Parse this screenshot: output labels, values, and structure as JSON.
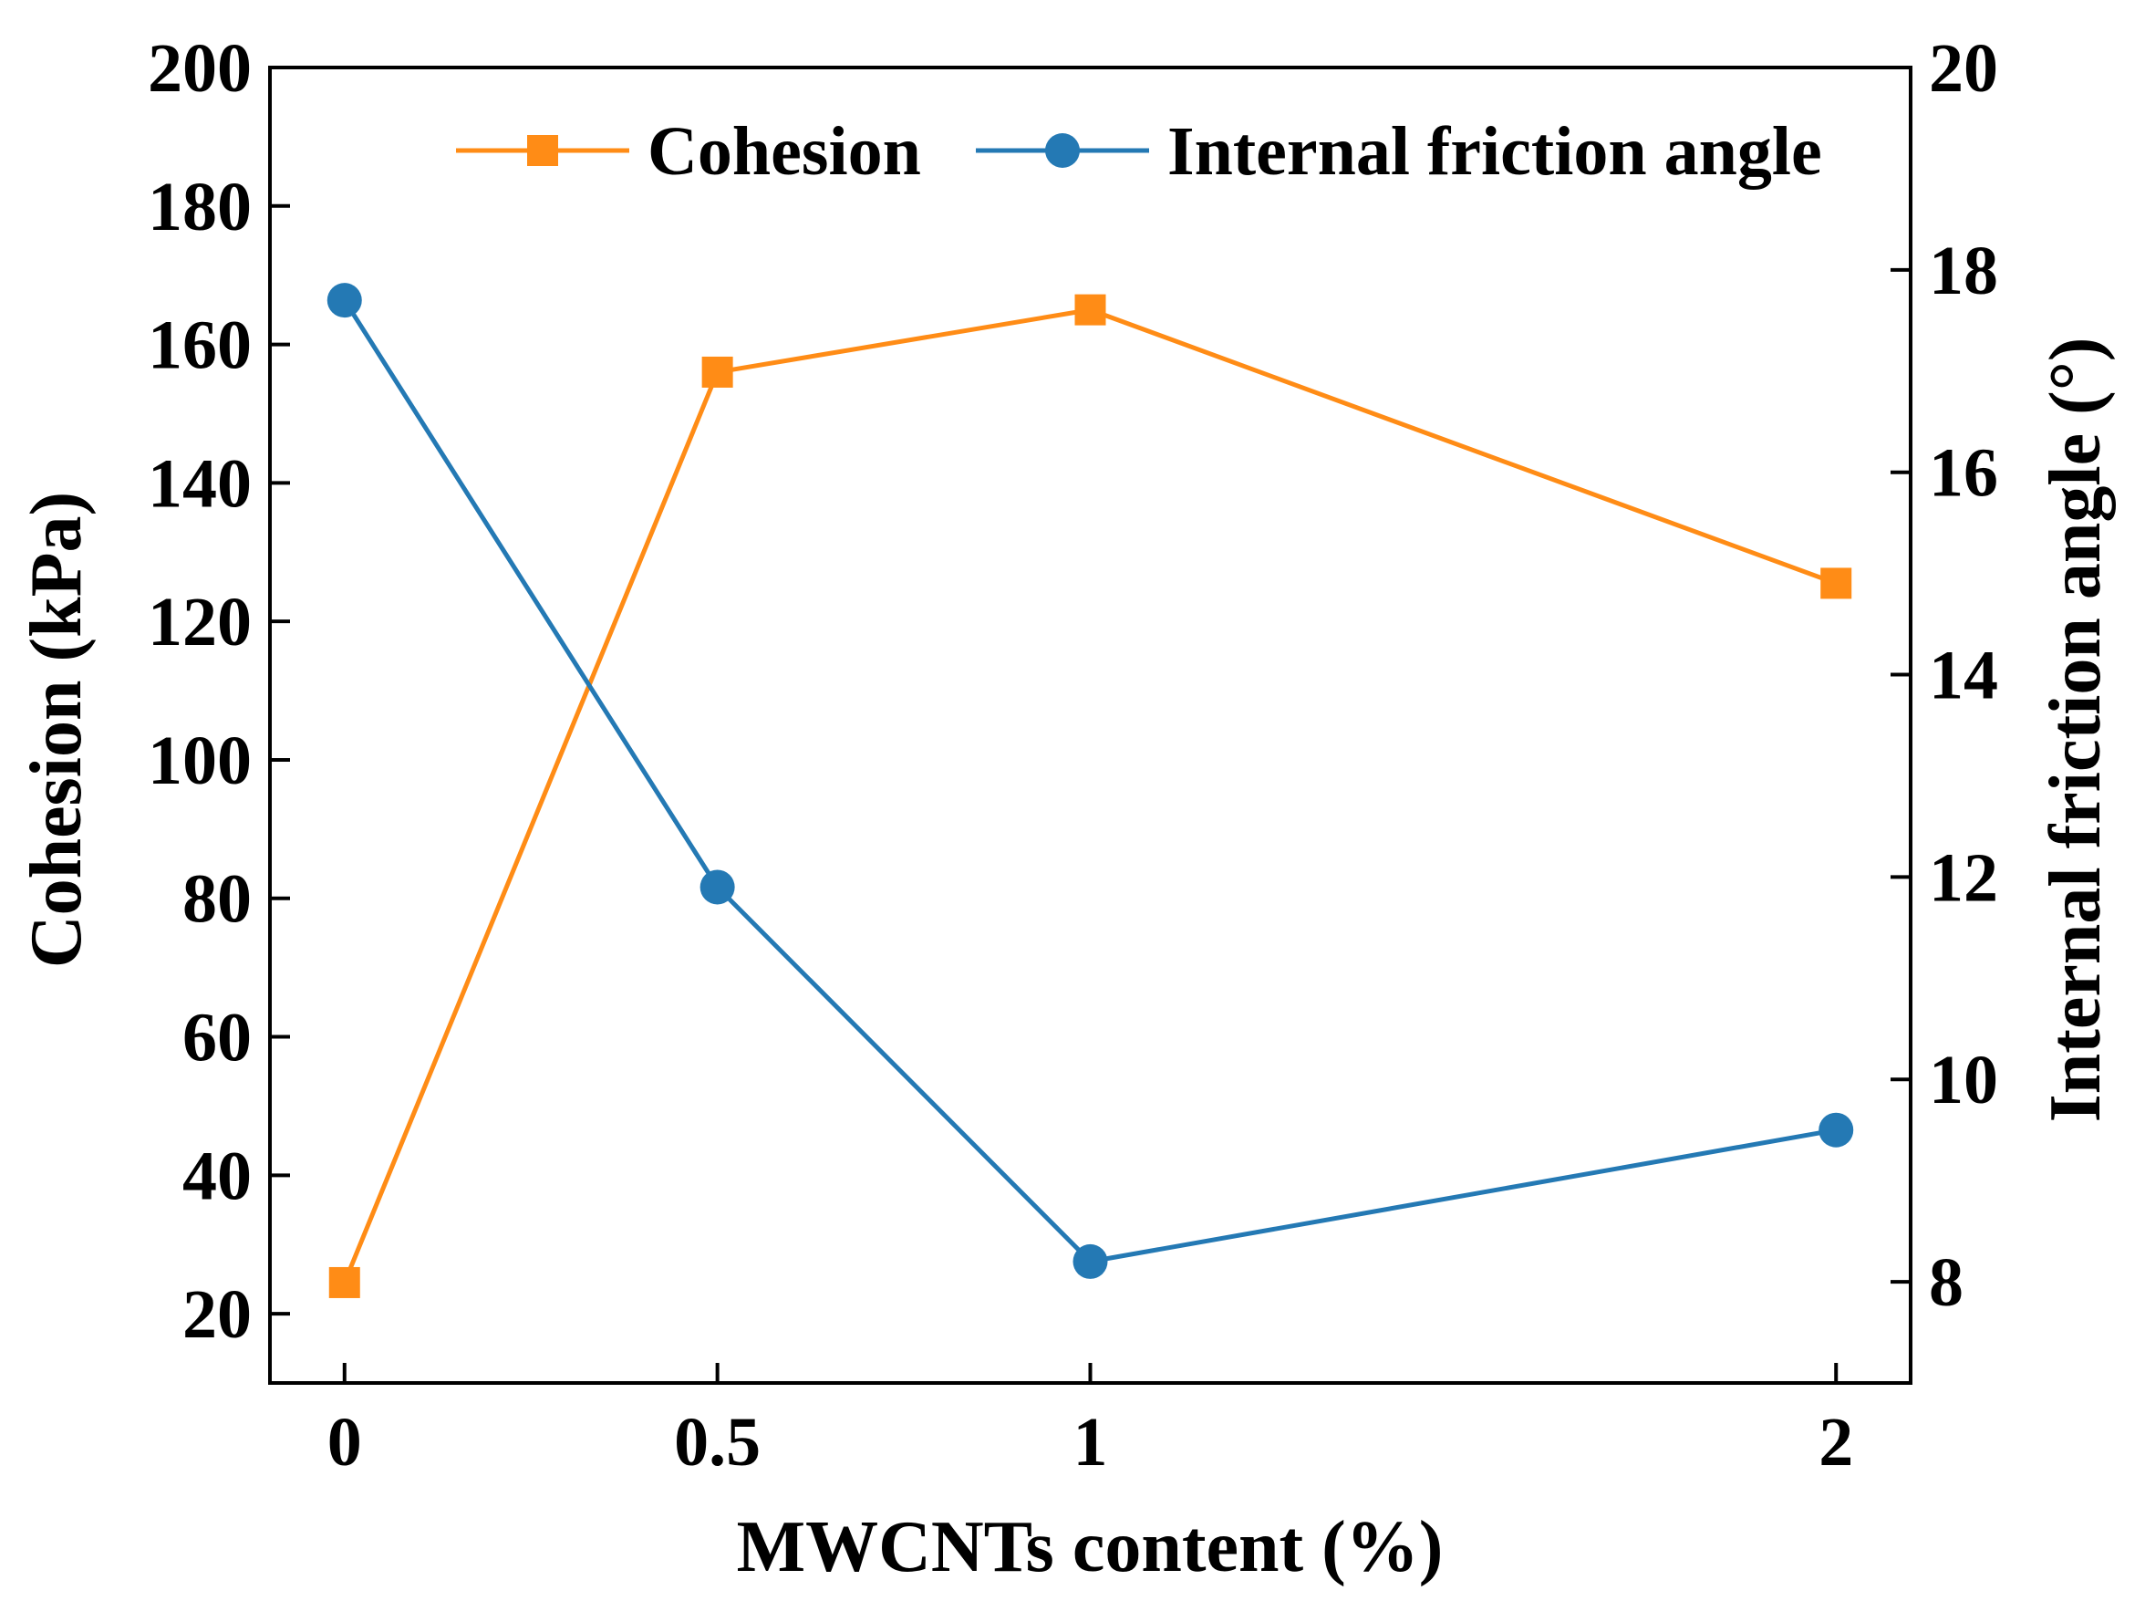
{
  "chart_data": {
    "type": "line",
    "x": [
      "0",
      "0.5",
      "1",
      "2"
    ],
    "x_values": [
      0,
      0.5,
      1,
      2
    ],
    "xlabel": "MWCNTs content (%)",
    "ylabel": "Cohesion (kPa)",
    "ylabel_right": "Internal friction angle (°)",
    "ylim": [
      10,
      200
    ],
    "ylim_right": [
      7,
      20
    ],
    "yticks": [
      "20",
      "40",
      "60",
      "80",
      "100",
      "120",
      "140",
      "160",
      "180",
      "200"
    ],
    "yticks_right": [
      "8",
      "10",
      "12",
      "14",
      "16",
      "18",
      "20"
    ],
    "legend_position": "top-right",
    "grid": false,
    "series": [
      {
        "name": "Cohesion",
        "axis": "left",
        "marker": "square",
        "color": "#ff8c16",
        "values": [
          24.5,
          156,
          165,
          125.5
        ]
      },
      {
        "name": "Internal friction angle",
        "axis": "right",
        "marker": "circle",
        "color": "#2479b4",
        "values": [
          17.7,
          11.9,
          8.2,
          9.5
        ]
      }
    ]
  }
}
